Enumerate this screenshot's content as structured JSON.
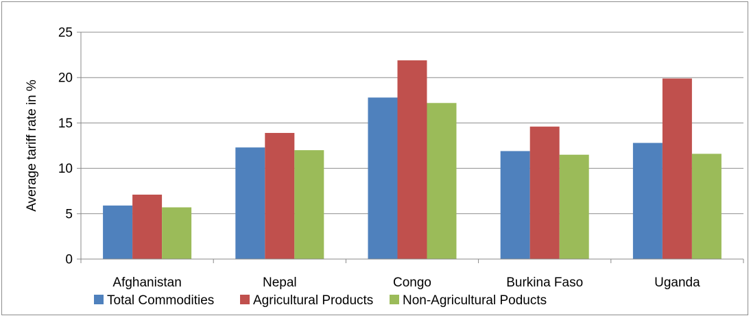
{
  "chart_data": {
    "type": "bar",
    "title": "",
    "xlabel": "",
    "ylabel": "Average tariff rate in %",
    "categories": [
      "Afghanistan",
      "Nepal",
      "Congo",
      "Burkina Faso",
      "Uganda"
    ],
    "series": [
      {
        "name": "Total Commodities",
        "values": [
          5.9,
          12.3,
          17.8,
          11.9,
          12.8
        ],
        "color": "#4f81bd"
      },
      {
        "name": "Agricultural Products",
        "values": [
          7.1,
          13.9,
          21.9,
          14.6,
          19.9
        ],
        "color": "#c0504d"
      },
      {
        "name": "Non-Agricultural Poducts",
        "values": [
          5.7,
          12.0,
          17.2,
          11.5,
          11.6
        ],
        "color": "#9bbb59"
      }
    ],
    "ylim": [
      0,
      25
    ],
    "yticks": [
      0,
      5,
      10,
      15,
      20,
      25
    ],
    "grid": true,
    "legend_position": "bottom"
  }
}
